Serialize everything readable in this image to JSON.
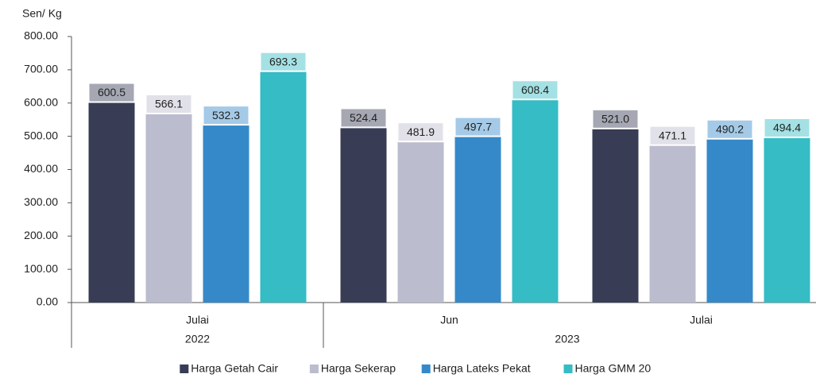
{
  "chart_data": {
    "type": "bar",
    "y_axis_label": "Sen/ Kg",
    "groups": [
      {
        "label": "2022",
        "categories": [
          "Julai"
        ]
      },
      {
        "label": "2023",
        "categories": [
          "Jun",
          "Julai"
        ]
      }
    ],
    "series": [
      {
        "name": "Harga Getah Cair",
        "color": "#383d55",
        "values": [
          600.5,
          524.4,
          521.0
        ],
        "value_labels": [
          "600.5",
          "524.4",
          "521.0"
        ]
      },
      {
        "name": "Harga Sekerap",
        "color": "#bcbccf",
        "values": [
          566.1,
          481.9,
          471.1
        ],
        "value_labels": [
          "566.1",
          "481.9",
          "471.1"
        ]
      },
      {
        "name": "Harga Lateks Pekat",
        "color": "#3589c9",
        "values": [
          532.3,
          497.7,
          490.2
        ],
        "value_labels": [
          "532.3",
          "497.7",
          "490.2"
        ]
      },
      {
        "name": "Harga GMM 20",
        "color": "#35bcc4",
        "values": [
          693.3,
          608.4,
          494.4
        ],
        "value_labels": [
          "693.3",
          "608.4",
          "494.4"
        ]
      }
    ],
    "ylim": [
      0,
      800
    ],
    "yticks": [
      {
        "value": 0,
        "label": "0.00"
      },
      {
        "value": 100,
        "label": "100.00"
      },
      {
        "value": 200,
        "label": "200.00"
      },
      {
        "value": 300,
        "label": "300.00"
      },
      {
        "value": 400,
        "label": "400.00"
      },
      {
        "value": 500,
        "label": "500.00"
      },
      {
        "value": 600,
        "label": "600.00"
      },
      {
        "value": 700,
        "label": "700.00"
      },
      {
        "value": 800,
        "label": "800.00"
      }
    ],
    "legend": "bottom"
  }
}
